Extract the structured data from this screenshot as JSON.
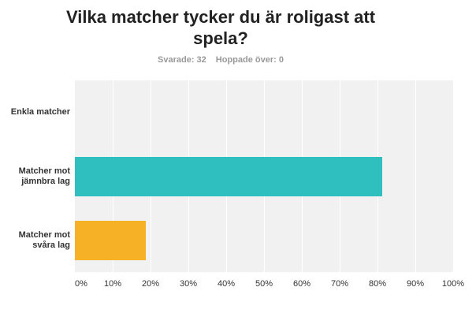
{
  "survey": {
    "title_line1": "Vilka matcher tycker du är roligast att",
    "title_line2": "spela?",
    "answered": "Svarade: 32",
    "skipped": "Hoppade över: 0"
  },
  "chart_data": {
    "type": "bar",
    "orientation": "horizontal",
    "title": "Vilka matcher tycker du är roligast att spela?",
    "categories": [
      {
        "line1": "Enkla matcher",
        "line2": ""
      },
      {
        "line1": "Matcher mot",
        "line2": "jämnbra lag"
      },
      {
        "line1": "Matcher mot",
        "line2": "svåra lag"
      }
    ],
    "values": [
      0,
      81.25,
      18.75
    ],
    "colors": [
      "#2fbfbf",
      "#2fbfbf",
      "#f7b126"
    ],
    "xlim": [
      0,
      100
    ],
    "x_ticks": [
      "0%",
      "10%",
      "20%",
      "30%",
      "40%",
      "50%",
      "60%",
      "70%",
      "80%",
      "90%",
      "100%"
    ],
    "grid": true,
    "legend": "none"
  }
}
